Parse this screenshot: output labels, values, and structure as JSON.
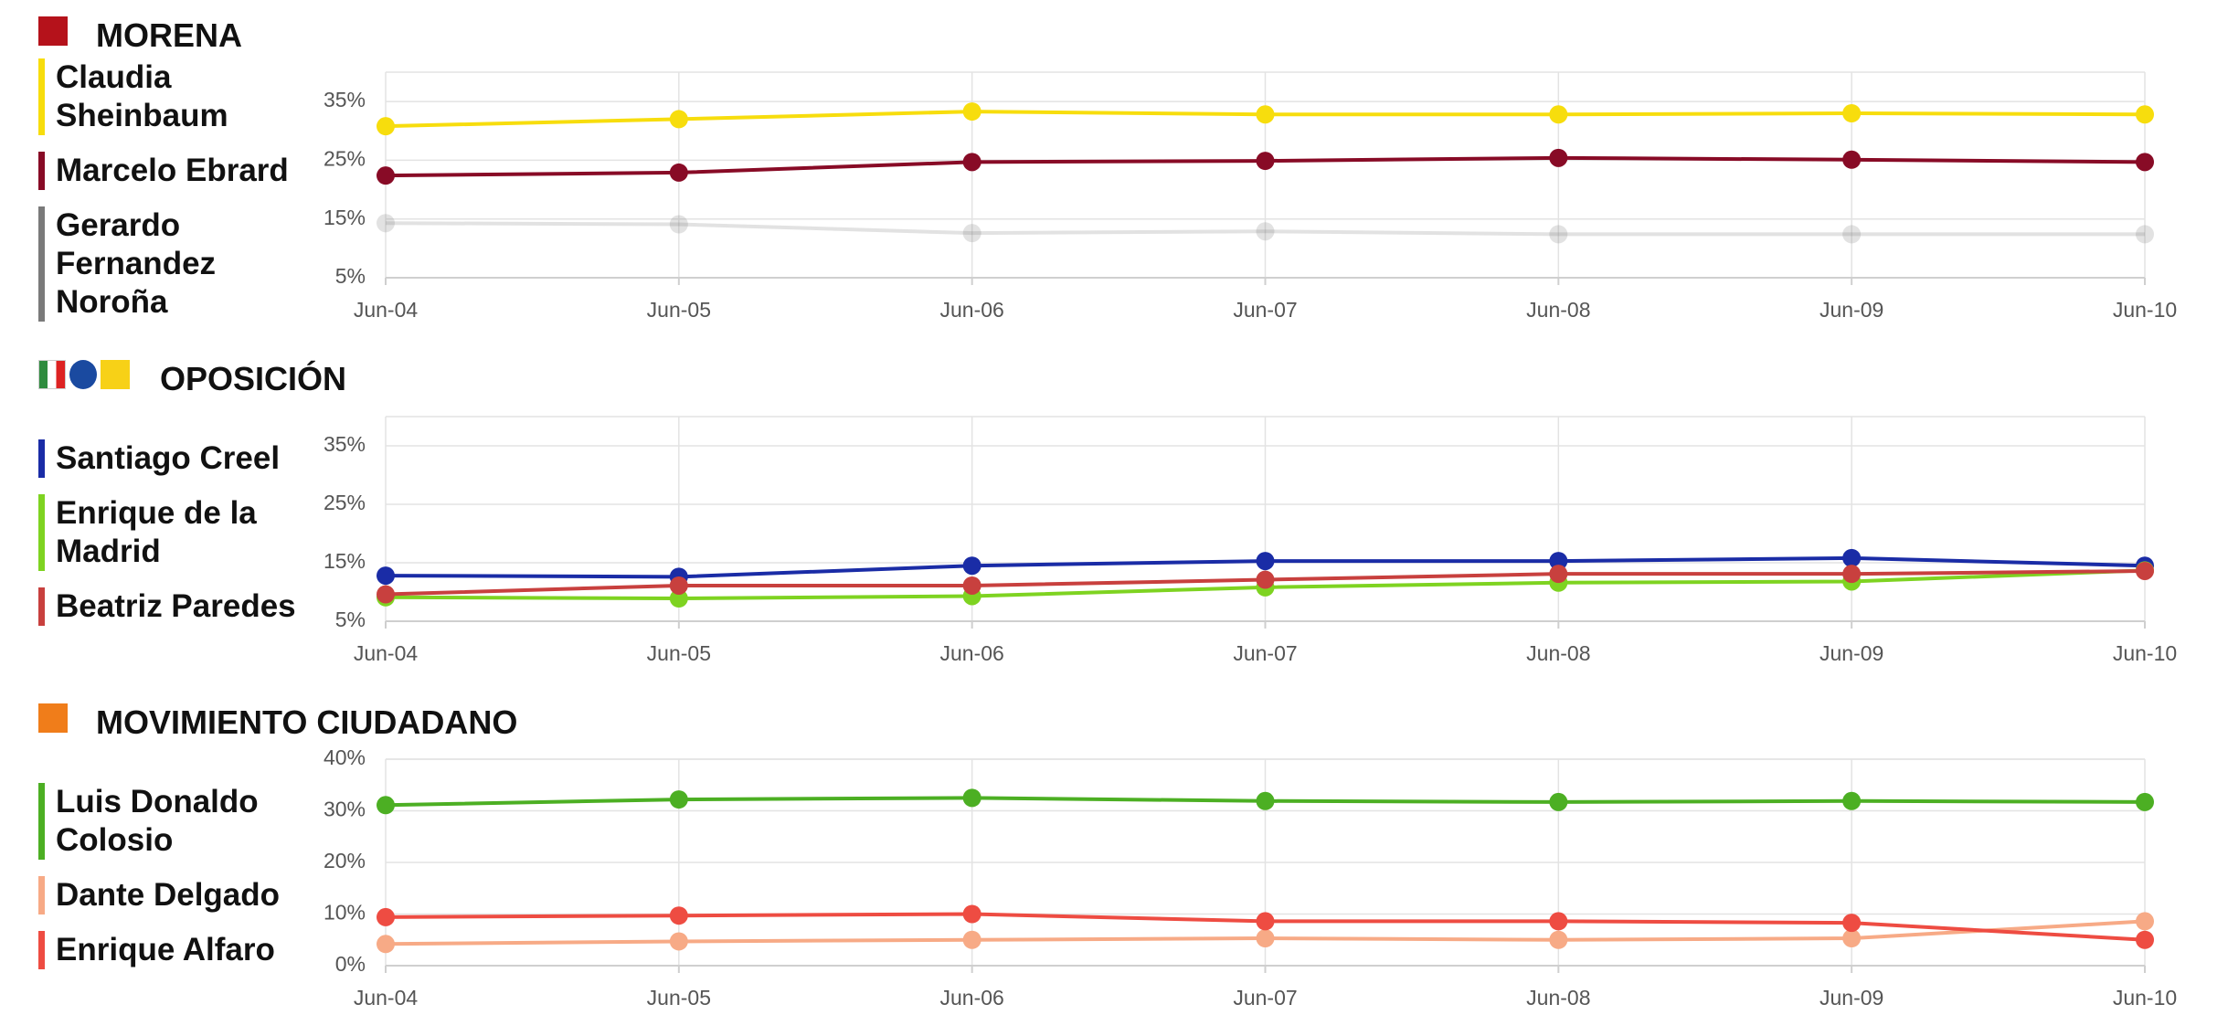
{
  "chart_data": [
    {
      "type": "line",
      "title": "MORENA",
      "categories": [
        "Jun-04",
        "Jun-05",
        "Jun-06",
        "Jun-07",
        "Jun-08",
        "Jun-09",
        "Jun-10"
      ],
      "ylim": [
        5,
        40
      ],
      "yticks": [
        {
          "value": 5,
          "label": "5%"
        },
        {
          "value": 15,
          "label": "15%"
        },
        {
          "value": 25,
          "label": "25%"
        },
        {
          "value": 35,
          "label": "35%"
        }
      ],
      "grid": true,
      "series": [
        {
          "name": "Claudia Sheinbaum",
          "color": "#f7dd0d",
          "values": [
            30.8,
            32.0,
            33.3,
            32.8,
            32.8,
            33.0,
            32.8
          ]
        },
        {
          "name": "Marcelo Ebrard",
          "color": "#880b26",
          "values": [
            22.4,
            22.9,
            24.7,
            24.9,
            25.4,
            25.1,
            24.7
          ]
        },
        {
          "name": "Gerardo Fernandez Noroña",
          "color": "#7a7a7a",
          "faded": true,
          "values": [
            14.3,
            14.1,
            12.6,
            12.9,
            12.4,
            12.4,
            12.4
          ]
        }
      ]
    },
    {
      "type": "line",
      "title": "OPOSICIÓN",
      "categories": [
        "Jun-04",
        "Jun-05",
        "Jun-06",
        "Jun-07",
        "Jun-08",
        "Jun-09",
        "Jun-10"
      ],
      "ylim": [
        5,
        40
      ],
      "yticks": [
        {
          "value": 5,
          "label": "5%"
        },
        {
          "value": 15,
          "label": "15%"
        },
        {
          "value": 25,
          "label": "25%"
        },
        {
          "value": 35,
          "label": "35%"
        }
      ],
      "grid": true,
      "series": [
        {
          "name": "Santiago Creel",
          "color": "#1a2ca6",
          "values": [
            12.8,
            12.6,
            14.5,
            15.3,
            15.3,
            15.8,
            14.5
          ]
        },
        {
          "name": "Enrique de la Madrid",
          "color": "#7ed321",
          "values": [
            9.1,
            8.9,
            9.3,
            10.8,
            11.6,
            11.8,
            13.7
          ]
        },
        {
          "name": "Beatriz Paredes",
          "color": "#c8403e",
          "values": [
            9.6,
            11.1,
            11.1,
            12.1,
            13.1,
            13.1,
            13.6
          ]
        }
      ]
    },
    {
      "type": "line",
      "title": "MOVIMIENTO CIUDADANO",
      "categories": [
        "Jun-04",
        "Jun-05",
        "Jun-06",
        "Jun-07",
        "Jun-08",
        "Jun-09",
        "Jun-10"
      ],
      "ylim": [
        0,
        40
      ],
      "yticks": [
        {
          "value": 0,
          "label": "0%"
        },
        {
          "value": 10,
          "label": "10%"
        },
        {
          "value": 20,
          "label": "20%"
        },
        {
          "value": 30,
          "label": "30%"
        },
        {
          "value": 40,
          "label": "40%"
        }
      ],
      "grid": true,
      "series": [
        {
          "name": "Luis Donaldo Colosio",
          "color": "#4caf23",
          "values": [
            31.1,
            32.2,
            32.5,
            31.9,
            31.7,
            31.9,
            31.7
          ]
        },
        {
          "name": "Dante Delgado",
          "color": "#f7aa86",
          "values": [
            4.2,
            4.7,
            5.0,
            5.3,
            5.0,
            5.3,
            8.6
          ]
        },
        {
          "name": "Enrique Alfaro",
          "color": "#ee4c42",
          "values": [
            9.4,
            9.7,
            10.0,
            8.6,
            8.6,
            8.3,
            5.0
          ]
        }
      ]
    }
  ]
}
